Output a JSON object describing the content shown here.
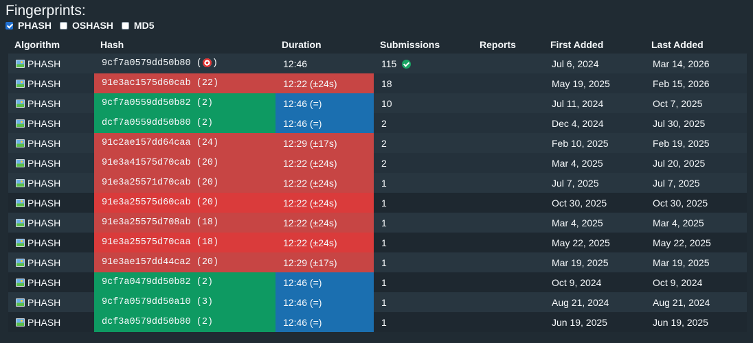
{
  "title": "Fingerprints:",
  "filters": [
    {
      "label": "PHASH",
      "checked": true
    },
    {
      "label": "OSHASH",
      "checked": false
    },
    {
      "label": "MD5",
      "checked": false
    }
  ],
  "columns": [
    "Algorithm",
    "Hash",
    "Duration",
    "Submissions",
    "Reports",
    "First Added",
    "Last Added"
  ],
  "rows": [
    {
      "algorithm": "PHASH",
      "hash": "9cf7a0579dd50b80 (",
      "hash_suffix": ")",
      "duration": "12:46",
      "submissions": "115",
      "reports": "",
      "first_added": "Jul 6, 2024",
      "last_added": "Mar 14, 2026"
    },
    {
      "algorithm": "PHASH",
      "hash": "91e3ac1575d60cab (22)",
      "duration": "12:22 (±24s)",
      "submissions": "18",
      "reports": "",
      "first_added": "May 19, 2025",
      "last_added": "Feb 15, 2026"
    },
    {
      "algorithm": "PHASH",
      "hash": "9cf7a0559dd50b82 (2)",
      "duration": "12:46 (=)",
      "submissions": "10",
      "reports": "",
      "first_added": "Jul 11, 2024",
      "last_added": "Oct 7, 2025"
    },
    {
      "algorithm": "PHASH",
      "hash": "dcf7a0559dd50b80 (2)",
      "duration": "12:46 (=)",
      "submissions": "2",
      "reports": "",
      "first_added": "Dec 4, 2024",
      "last_added": "Jul 30, 2025"
    },
    {
      "algorithm": "PHASH",
      "hash": "91c2ae157dd64caa (24)",
      "duration": "12:29 (±17s)",
      "submissions": "2",
      "reports": "",
      "first_added": "Feb 10, 2025",
      "last_added": "Feb 19, 2025"
    },
    {
      "algorithm": "PHASH",
      "hash": "91e3a41575d70cab (20)",
      "duration": "12:22 (±24s)",
      "submissions": "2",
      "reports": "",
      "first_added": "Mar 4, 2025",
      "last_added": "Jul 20, 2025"
    },
    {
      "algorithm": "PHASH",
      "hash": "91e3a25571d70cab (20)",
      "duration": "12:22 (±24s)",
      "submissions": "1",
      "reports": "",
      "first_added": "Jul 7, 2025",
      "last_added": "Jul 7, 2025"
    },
    {
      "algorithm": "PHASH",
      "hash": "91e3a25575d60cab (20)",
      "duration": "12:22 (±24s)",
      "submissions": "1",
      "reports": "",
      "first_added": "Oct 30, 2025",
      "last_added": "Oct 30, 2025"
    },
    {
      "algorithm": "PHASH",
      "hash": "91e3a25575d708ab (18)",
      "duration": "12:22 (±24s)",
      "submissions": "1",
      "reports": "",
      "first_added": "Mar 4, 2025",
      "last_added": "Mar 4, 2025"
    },
    {
      "algorithm": "PHASH",
      "hash": "91e3a25575d70caa (18)",
      "duration": "12:22 (±24s)",
      "submissions": "1",
      "reports": "",
      "first_added": "May 22, 2025",
      "last_added": "May 22, 2025"
    },
    {
      "algorithm": "PHASH",
      "hash": "91e3ae157dd44ca2 (20)",
      "duration": "12:29 (±17s)",
      "submissions": "1",
      "reports": "",
      "first_added": "Mar 19, 2025",
      "last_added": "Mar 19, 2025"
    },
    {
      "algorithm": "PHASH",
      "hash": "9cf7a0479dd50b82 (2)",
      "duration": "12:46 (=)",
      "submissions": "1",
      "reports": "",
      "first_added": "Oct 9, 2024",
      "last_added": "Oct 9, 2024"
    },
    {
      "algorithm": "PHASH",
      "hash": "9cf7a0579dd50a10 (3)",
      "duration": "12:46 (=)",
      "submissions": "1",
      "reports": "",
      "first_added": "Aug 21, 2024",
      "last_added": "Aug 21, 2024"
    },
    {
      "algorithm": "PHASH",
      "hash": "dcf3a0579dd50b80 (2)",
      "duration": "12:46 (=)",
      "submissions": "1",
      "reports": "",
      "first_added": "Jun 19, 2025",
      "last_added": "Jun 19, 2025"
    }
  ],
  "colors": {
    "mismatch": "#c74544",
    "match": "#0e9a62",
    "duration_match": "#1b6fb0",
    "verified": "#19a463"
  }
}
